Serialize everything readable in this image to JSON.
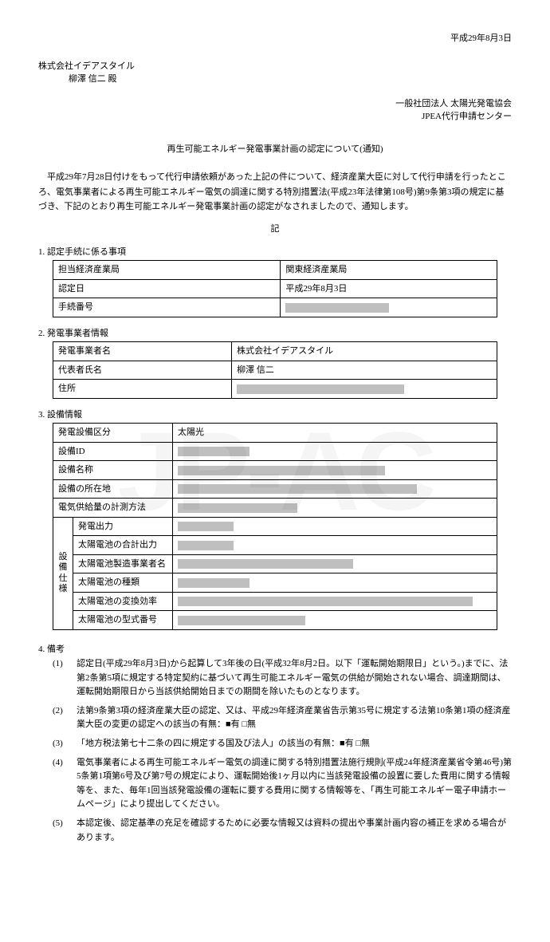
{
  "watermark": "JP-AC",
  "date_top": "平成29年8月3日",
  "addressee": {
    "company": "株式会社イデアスタイル",
    "person": "柳澤  信二  殿"
  },
  "sender": {
    "org": "一般社団法人  太陽光発電協会",
    "center": "JPEA代行申請センター"
  },
  "title": "再生可能エネルギー発電事業計画の認定について(通知)",
  "body": "平成29年7月28日付けをもって代行申請依頼があった上記の件について、経済産業大臣に対して代行申請を行ったところ、電気事業者による再生可能エネルギー電気の調達に関する特別措置法(平成23年法律第108号)第9条第3項の規定に基づき、下記のとおり再生可能エネルギー発電事業計画の認定がなされましたので、通知します。",
  "ki": "記",
  "sec1": {
    "head": "1. 認定手続に係る事項",
    "rows": {
      "bureau_label": "担当経済産業局",
      "bureau_value": "関東経済産業局",
      "certdate_label": "認定日",
      "certdate_value": "平成29年8月3日",
      "procnum_label": "手続番号",
      "procnum_redacted_w": 130
    }
  },
  "sec2": {
    "head": "2. 発電事業者情報",
    "rows": {
      "name_label": "発電事業者名",
      "name_value": "株式会社イデアスタイル",
      "rep_label": "代表者氏名",
      "rep_value": "柳澤  信二",
      "addr_label": "住所",
      "addr_redacted_w": 210
    }
  },
  "sec3": {
    "head": "3. 設備情報",
    "rows": {
      "type_label": "発電設備区分",
      "type_value": "太陽光",
      "id_label": "設備ID",
      "id_redacted_w": 90,
      "fname_label": "設備名称",
      "fname_redacted_w": 260,
      "loc_label": "設備の所在地",
      "loc_redacted_w": 300,
      "meter_label": "電気供給量の計測方法",
      "meter_redacted_w": 150,
      "spec_header": "設備仕様",
      "out_label": "発電出力",
      "out_redacted_w": 70,
      "totout_label": "太陽電池の合計出力",
      "totout_redacted_w": 70,
      "maker_label": "太陽電池製造事業者名",
      "maker_redacted_w": 220,
      "kind_label": "太陽電池の種類",
      "kind_redacted_w": 90,
      "eff_label": "太陽電池の変換効率",
      "eff_redacted_w": 370,
      "model_label": "太陽電池の型式番号",
      "model_redacted_w": 160
    }
  },
  "sec4": {
    "head": "4. 備考",
    "items": {
      "i1": "認定日(平成29年8月3日)から起算して3年後の日(平成32年8月2日。以下「運転開始期限日」という。)までに、法第2条第5項に規定する特定契約に基づいて再生可能エネルギー電気の供給が開始されない場合、調達期間は、運転開始期限日から当該供給開始日までの期間を除いたものとなります。",
      "i2_a": "法第9条第3項の経済産業大臣の認定、又は、平成29年経済産業省告示第35号に規定する法第10条第1項の経済産業大臣の変更の認定への該当の有無：",
      "i2_yes": "■有",
      "i2_no": "□無",
      "i3_a": "「地方税法第七十二条の四に規定する国及び法人」の該当の有無：",
      "i3_yes": "■有",
      "i3_no": "□無",
      "i4": "電気事業者による再生可能エネルギー電気の調達に関する特別措置法施行規則(平成24年経済産業省令第46号)第5条第1項第6号及び第7号の規定により、運転開始後1ヶ月以内に当該発電設備の設置に要した費用に関する情報等を、また、毎年1回当該発電設備の運転に要する費用に関する情報等を、「再生可能エネルギー電子申請ホームページ」により提出してください。",
      "i5": "本認定後、認定基準の充足を確認するために必要な情報又は資料の提出や事業計画内容の補正を求める場合があります。"
    }
  },
  "redacted_color": "#bfbfbf"
}
